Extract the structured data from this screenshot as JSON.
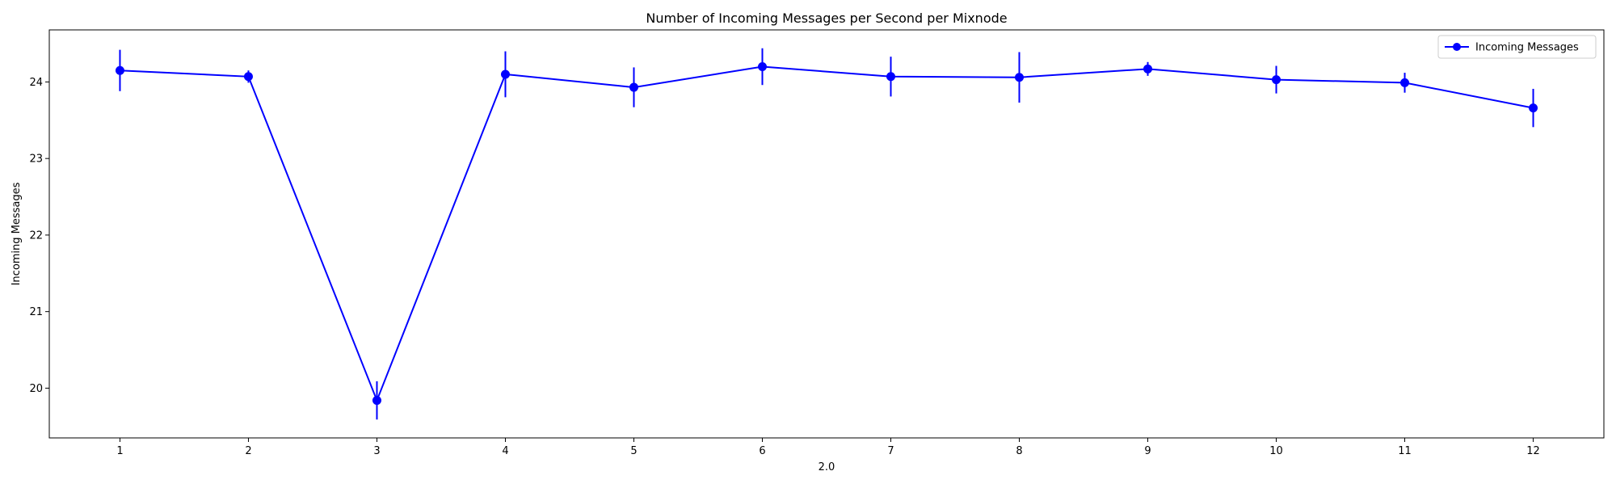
{
  "chart_data": {
    "type": "line",
    "title": "Number of Incoming Messages per Second per Mixnode",
    "xlabel": "2.0",
    "ylabel": "Incoming Messages",
    "x": [
      1,
      2,
      3,
      4,
      5,
      6,
      7,
      8,
      9,
      10,
      11,
      12
    ],
    "xlim": [
      0.45,
      12.55
    ],
    "ylim": [
      19.35,
      24.68
    ],
    "xticks": [
      1,
      2,
      3,
      4,
      5,
      6,
      7,
      8,
      9,
      10,
      11,
      12
    ],
    "yticks": [
      20,
      21,
      22,
      23,
      24
    ],
    "grid": false,
    "legend": {
      "position": "top-right"
    },
    "series": [
      {
        "name": "Incoming Messages",
        "color": "#0000ff",
        "marker": "circle",
        "values": [
          24.15,
          24.07,
          19.84,
          24.1,
          23.93,
          24.2,
          24.07,
          24.06,
          24.17,
          24.03,
          23.99,
          23.66
        ],
        "errors": [
          0.27,
          0.08,
          0.25,
          0.3,
          0.26,
          0.24,
          0.26,
          0.33,
          0.09,
          0.18,
          0.13,
          0.25
        ]
      }
    ]
  }
}
